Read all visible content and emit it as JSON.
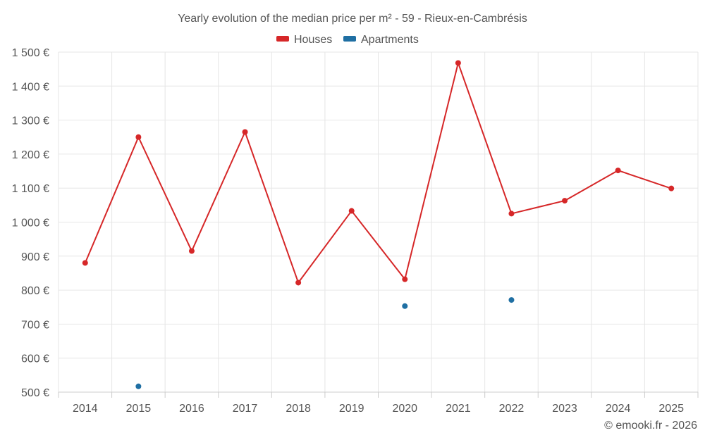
{
  "chart_data": {
    "type": "line",
    "title": "Yearly evolution of the median price per m² - 59 - Rieux-en-Cambrésis",
    "xlabel": "",
    "ylabel": "",
    "ylim": [
      500,
      1500
    ],
    "yticks": [
      500,
      600,
      700,
      800,
      900,
      1000,
      1100,
      1200,
      1300,
      1400,
      1500
    ],
    "ytick_labels": [
      "500 €",
      "600 €",
      "700 €",
      "800 €",
      "900 €",
      "1 000 €",
      "1 100 €",
      "1 200 €",
      "1 300 €",
      "1 400 €",
      "1 500 €"
    ],
    "categories": [
      "2014",
      "2015",
      "2016",
      "2017",
      "2018",
      "2019",
      "2020",
      "2021",
      "2022",
      "2023",
      "2024",
      "2025"
    ],
    "legend_position": "top-center",
    "grid": true,
    "series": [
      {
        "name": "Houses",
        "color": "#d62728",
        "style": "line",
        "values": [
          880,
          1250,
          915,
          1265,
          822,
          1033,
          832,
          1468,
          1025,
          1063,
          1152,
          1099
        ]
      },
      {
        "name": "Apartments",
        "color": "#1f6fa3",
        "style": "points",
        "values": [
          null,
          517,
          null,
          null,
          null,
          null,
          753,
          null,
          771,
          null,
          null,
          null
        ]
      }
    ],
    "credit": "© emooki.fr - 2026"
  }
}
